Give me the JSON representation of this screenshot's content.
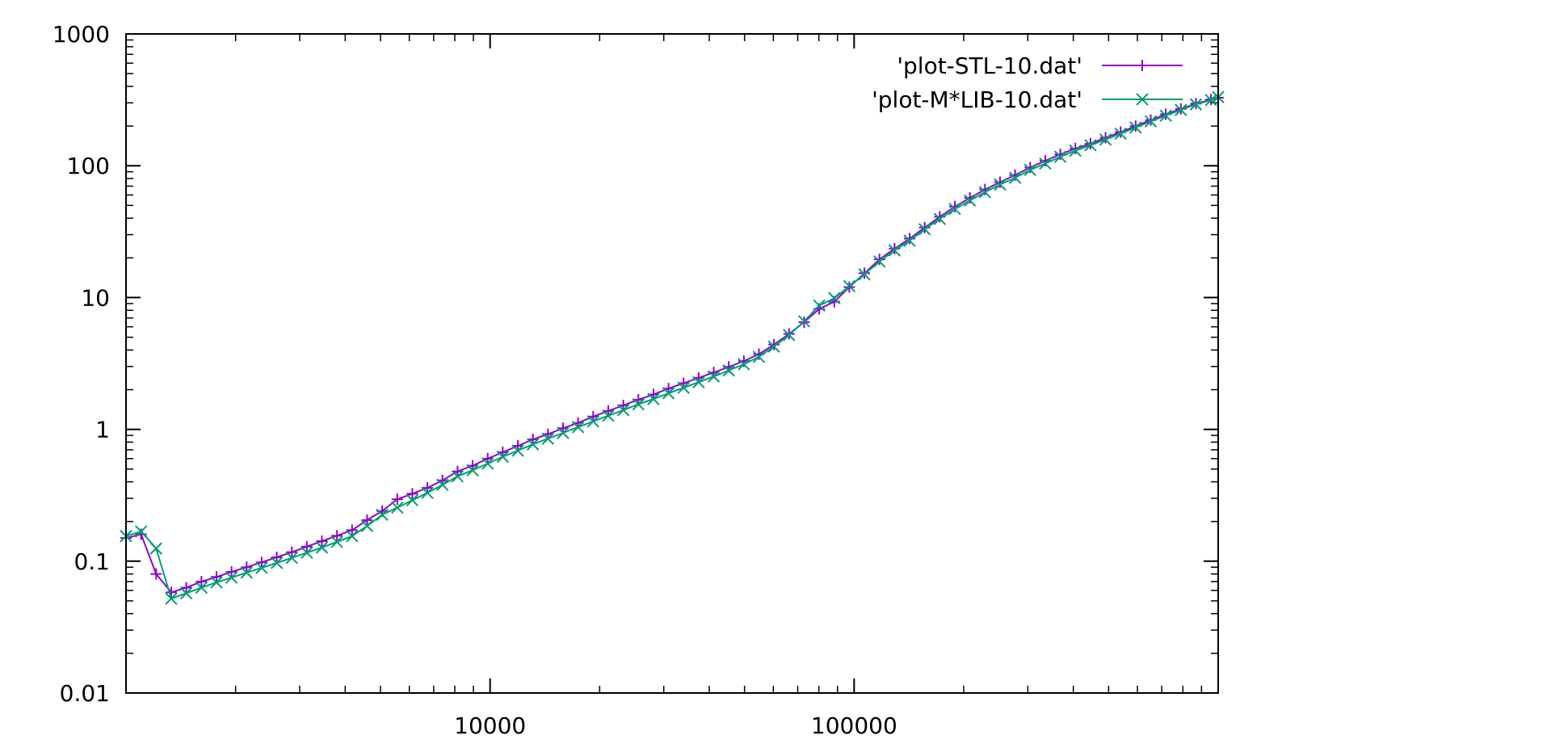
{
  "chart_data": {
    "type": "line",
    "title": "",
    "xlabel": "",
    "ylabel": "",
    "x_scale": "log",
    "y_scale": "log",
    "xlim": [
      1000,
      1000000
    ],
    "ylim": [
      0.01,
      1000
    ],
    "x_tick_labels": [
      "10000",
      "100000"
    ],
    "y_tick_labels": [
      "0.01",
      "0.1",
      "1",
      "10",
      "100",
      "1000"
    ],
    "grid": false,
    "legend_position": "top-right",
    "series": [
      {
        "name": "'plot-STL-10.dat'",
        "color": "#9400d3",
        "marker": "plus",
        "points": [
          [
            1000,
            0.15
          ],
          [
            1100,
            0.16
          ],
          [
            1210,
            0.08
          ],
          [
            1331,
            0.058
          ],
          [
            1464,
            0.063
          ],
          [
            1611,
            0.07
          ],
          [
            1772,
            0.076
          ],
          [
            1949,
            0.083
          ],
          [
            2144,
            0.09
          ],
          [
            2358,
            0.098
          ],
          [
            2594,
            0.107
          ],
          [
            2853,
            0.117
          ],
          [
            3138,
            0.129
          ],
          [
            3452,
            0.142
          ],
          [
            3797,
            0.156
          ],
          [
            4177,
            0.172
          ],
          [
            4595,
            0.205
          ],
          [
            5054,
            0.24
          ],
          [
            5560,
            0.295
          ],
          [
            6116,
            0.325
          ],
          [
            6727,
            0.36
          ],
          [
            7400,
            0.41
          ],
          [
            8140,
            0.48
          ],
          [
            8954,
            0.53
          ],
          [
            9850,
            0.6
          ],
          [
            10835,
            0.67
          ],
          [
            11918,
            0.75
          ],
          [
            13110,
            0.84
          ],
          [
            14421,
            0.92
          ],
          [
            15863,
            1.02
          ],
          [
            17449,
            1.12
          ],
          [
            19194,
            1.25
          ],
          [
            21114,
            1.38
          ],
          [
            23225,
            1.52
          ],
          [
            25548,
            1.68
          ],
          [
            28102,
            1.84
          ],
          [
            30913,
            2.04
          ],
          [
            34004,
            2.24
          ],
          [
            37404,
            2.46
          ],
          [
            41145,
            2.7
          ],
          [
            45259,
            2.98
          ],
          [
            49785,
            3.3
          ],
          [
            54764,
            3.72
          ],
          [
            60240,
            4.4
          ],
          [
            66264,
            5.3
          ],
          [
            72890,
            6.5
          ],
          [
            80180,
            8.2
          ],
          [
            88197,
            9.3
          ],
          [
            97017,
            12.0
          ],
          [
            106719,
            15.3
          ],
          [
            117390,
            19.5
          ],
          [
            129129,
            23.5
          ],
          [
            142042,
            28.0
          ],
          [
            156247,
            34.0
          ],
          [
            171871,
            41.0
          ],
          [
            189059,
            49.0
          ],
          [
            207965,
            57.0
          ],
          [
            228761,
            66.0
          ],
          [
            251637,
            75.0
          ],
          [
            276801,
            85.0
          ],
          [
            304481,
            97.0
          ],
          [
            334929,
            109.0
          ],
          [
            368422,
            122.0
          ],
          [
            405265,
            135.0
          ],
          [
            445791,
            147.0
          ],
          [
            490370,
            163.0
          ],
          [
            539407,
            180.0
          ],
          [
            593348,
            200.0
          ],
          [
            652683,
            222.0
          ],
          [
            717951,
            246.0
          ],
          [
            789747,
            270.0
          ],
          [
            868721,
            296.0
          ],
          [
            955593,
            318.0
          ],
          [
            1000000,
            328.0
          ]
        ]
      },
      {
        "name": "'plot-M*LIB-10.dat'",
        "color": "#009e73",
        "marker": "x",
        "points": [
          [
            1000,
            0.155
          ],
          [
            1100,
            0.168
          ],
          [
            1210,
            0.125
          ],
          [
            1331,
            0.052
          ],
          [
            1464,
            0.057
          ],
          [
            1611,
            0.063
          ],
          [
            1772,
            0.069
          ],
          [
            1949,
            0.075
          ],
          [
            2144,
            0.082
          ],
          [
            2358,
            0.089
          ],
          [
            2594,
            0.097
          ],
          [
            2853,
            0.106
          ],
          [
            3138,
            0.116
          ],
          [
            3452,
            0.127
          ],
          [
            3797,
            0.14
          ],
          [
            4177,
            0.155
          ],
          [
            4595,
            0.185
          ],
          [
            5054,
            0.225
          ],
          [
            5560,
            0.255
          ],
          [
            6116,
            0.29
          ],
          [
            6727,
            0.33
          ],
          [
            7400,
            0.38
          ],
          [
            8140,
            0.44
          ],
          [
            8954,
            0.49
          ],
          [
            9850,
            0.55
          ],
          [
            10835,
            0.62
          ],
          [
            11918,
            0.69
          ],
          [
            13110,
            0.77
          ],
          [
            14421,
            0.85
          ],
          [
            15863,
            0.94
          ],
          [
            17449,
            1.04
          ],
          [
            19194,
            1.15
          ],
          [
            21114,
            1.27
          ],
          [
            23225,
            1.4
          ],
          [
            25548,
            1.55
          ],
          [
            28102,
            1.7
          ],
          [
            30913,
            1.88
          ],
          [
            34004,
            2.07
          ],
          [
            37404,
            2.28
          ],
          [
            41145,
            2.52
          ],
          [
            45259,
            2.8
          ],
          [
            49785,
            3.12
          ],
          [
            54764,
            3.55
          ],
          [
            60240,
            4.25
          ],
          [
            66264,
            5.2
          ],
          [
            72890,
            6.6
          ],
          [
            80180,
            8.7
          ],
          [
            88197,
            9.9
          ],
          [
            97017,
            12.2
          ],
          [
            106719,
            15.0
          ],
          [
            117390,
            18.8
          ],
          [
            129129,
            22.8
          ],
          [
            142042,
            27.0
          ],
          [
            156247,
            33.0
          ],
          [
            171871,
            39.5
          ],
          [
            189059,
            47.0
          ],
          [
            207965,
            54.5
          ],
          [
            228761,
            63.0
          ],
          [
            251637,
            72.0
          ],
          [
            276801,
            81.0
          ],
          [
            304481,
            93.0
          ],
          [
            334929,
            104.0
          ],
          [
            368422,
            117.0
          ],
          [
            405265,
            130.0
          ],
          [
            445791,
            143.0
          ],
          [
            490370,
            158.0
          ],
          [
            539407,
            175.0
          ],
          [
            593348,
            195.0
          ],
          [
            652683,
            217.0
          ],
          [
            717951,
            240.0
          ],
          [
            789747,
            265.0
          ],
          [
            868721,
            292.0
          ],
          [
            955593,
            315.0
          ],
          [
            1000000,
            332.0
          ]
        ]
      }
    ]
  }
}
